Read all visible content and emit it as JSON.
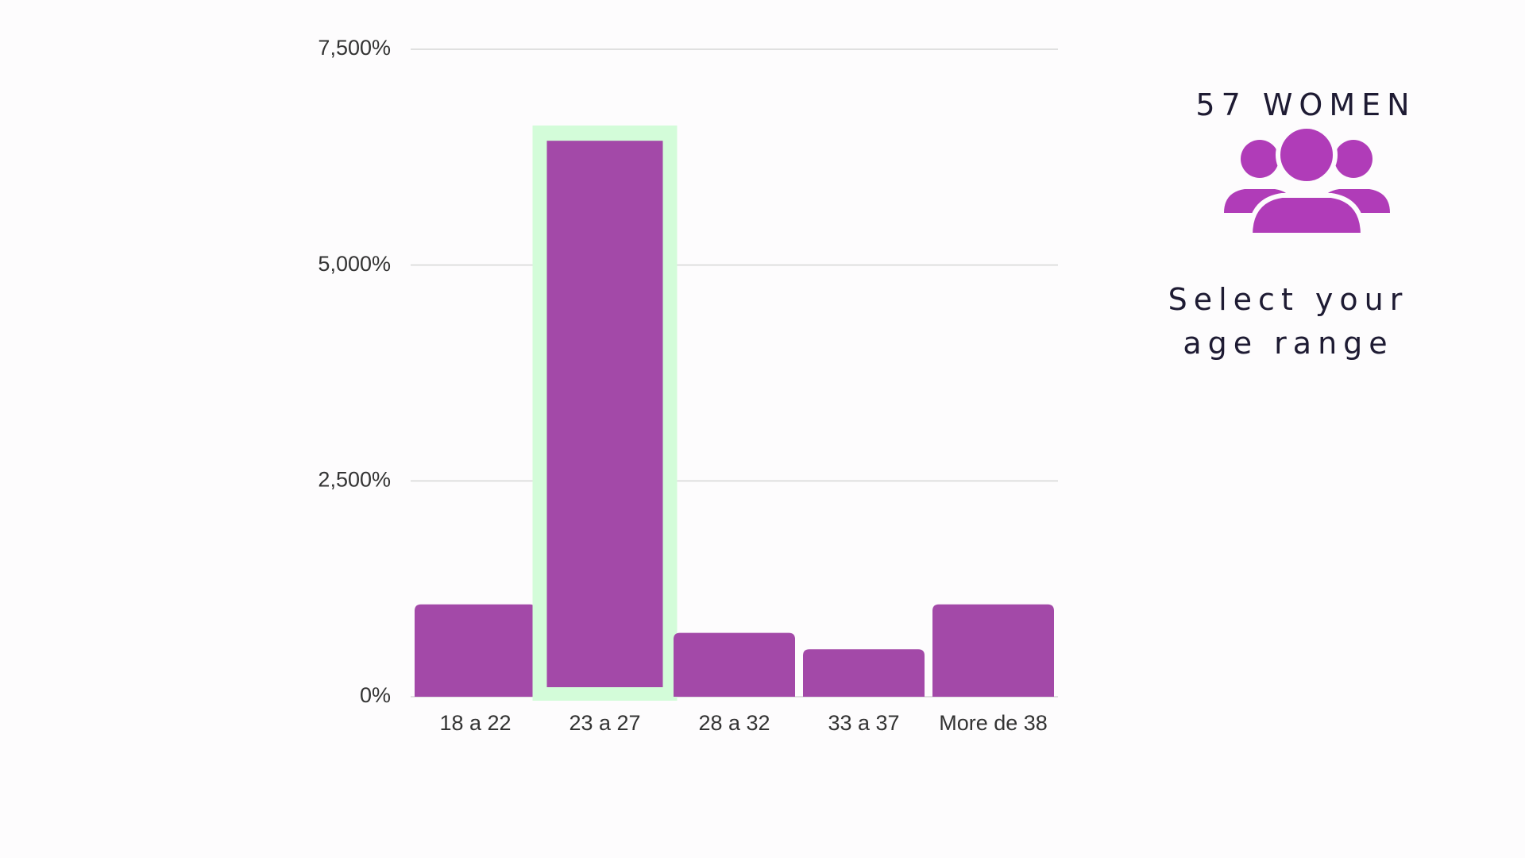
{
  "chart_data": {
    "type": "bar",
    "categories": [
      "18 a 22",
      "23 a 27",
      "28 a 32",
      "33 a 37",
      "More de 38"
    ],
    "values": [
      1070,
      6440,
      740,
      550,
      1070
    ],
    "color": "#a349a8",
    "ylim": [
      0,
      7500
    ],
    "yticks": [
      {
        "value": 0,
        "label": "0%"
      },
      {
        "value": 2500,
        "label": "2,500%"
      },
      {
        "value": 5000,
        "label": "5,000%"
      },
      {
        "value": 7500,
        "label": "7,500%"
      }
    ],
    "grid": true,
    "selected_index": 1,
    "highlight_color": "#d3fcd9",
    "annotations": [
      "57 WOMEN",
      "Select your",
      "age range"
    ]
  }
}
